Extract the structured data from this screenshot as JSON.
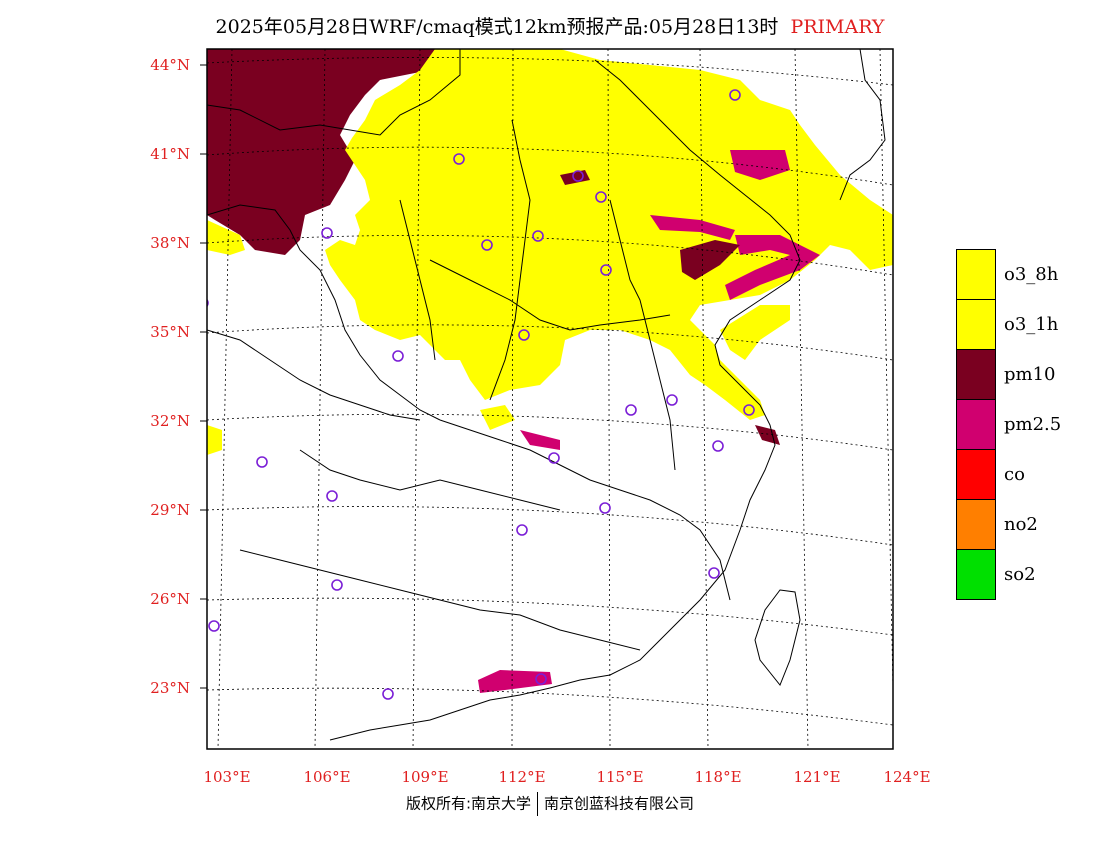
{
  "title": {
    "main": "2025年05月28日WRF/cmaq模式12km预报产品:05月28日13时",
    "tag": "PRIMARY"
  },
  "axes": {
    "lat_labels": [
      "44°N",
      "41°N",
      "38°N",
      "35°N",
      "32°N",
      "29°N",
      "26°N",
      "23°N"
    ],
    "lon_labels": [
      "103°E",
      "106°E",
      "109°E",
      "112°E",
      "115°E",
      "118°E",
      "121°E",
      "124°E"
    ]
  },
  "legend": [
    {
      "label": "o3_8h",
      "color": "#ffff00"
    },
    {
      "label": "o3_1h",
      "color": "#ffff00"
    },
    {
      "label": "pm10",
      "color": "#7a0020"
    },
    {
      "label": "pm2.5",
      "color": "#d0006f"
    },
    {
      "label": "co",
      "color": "#ff0000"
    },
    {
      "label": "no2",
      "color": "#ff7f00"
    },
    {
      "label": "so2",
      "color": "#00e000"
    }
  ],
  "stations": [
    [
      735,
      95
    ],
    [
      459,
      159
    ],
    [
      578,
      176
    ],
    [
      601,
      197
    ],
    [
      327,
      233
    ],
    [
      487,
      245
    ],
    [
      538,
      236
    ],
    [
      606,
      270
    ],
    [
      203,
      303
    ],
    [
      524,
      335
    ],
    [
      398,
      356
    ],
    [
      672,
      400
    ],
    [
      631,
      410
    ],
    [
      749,
      410
    ],
    [
      554,
      458
    ],
    [
      718,
      446
    ],
    [
      262,
      462
    ],
    [
      332,
      496
    ],
    [
      605,
      508
    ],
    [
      522,
      530
    ],
    [
      337,
      585
    ],
    [
      714,
      573
    ],
    [
      214,
      626
    ],
    [
      388,
      694
    ],
    [
      541,
      679
    ]
  ],
  "copyright": {
    "left": "版权所有:南京大学",
    "right": "南京创蓝科技有限公司"
  }
}
